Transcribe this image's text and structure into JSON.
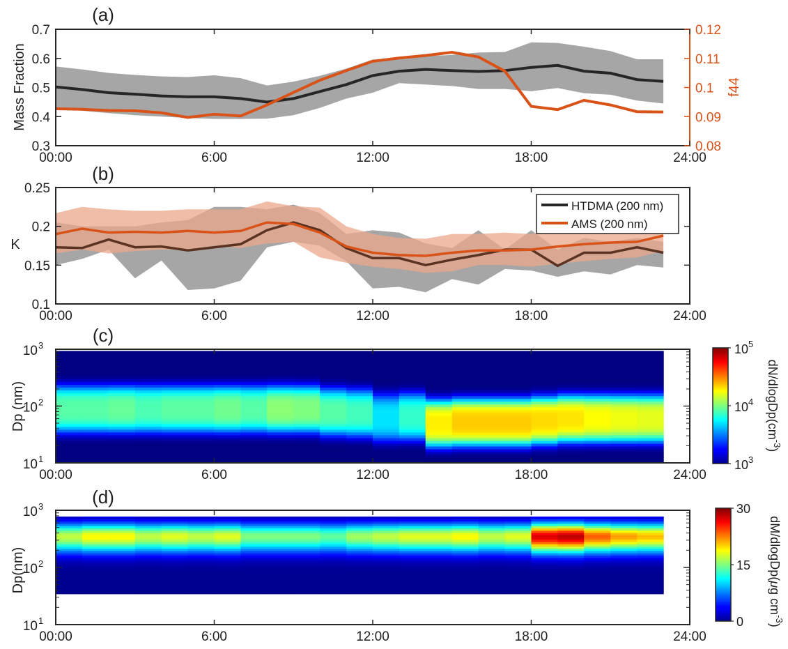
{
  "xticks": [
    "00:00",
    "6:00",
    "12:00",
    "18:00",
    "24:00"
  ],
  "colors": {
    "black_line": "#262626",
    "orange_line": "#d95319",
    "grey_band": "#a6a6a6",
    "orange_band": "#e9a78b",
    "axis_right_orange": "#d95319"
  },
  "chart_data": [
    {
      "type": "line",
      "panel_label": "(a)",
      "ylabel": "Mass Fraction",
      "ylim": [
        0.3,
        0.7
      ],
      "yticks": [
        "0.3",
        "0.4",
        "0.5",
        "0.6",
        "0.7"
      ],
      "y2label": "f44",
      "y2lim": [
        0.08,
        0.12
      ],
      "y2ticks": [
        "0.08",
        "0.09",
        "0.1",
        "0.11",
        "0.12"
      ],
      "x_hours": [
        0,
        1,
        2,
        3,
        4,
        5,
        6,
        7,
        8,
        9,
        10,
        11,
        12,
        13,
        14,
        15,
        16,
        17,
        18,
        19,
        20,
        21,
        22,
        23
      ],
      "series": [
        {
          "axis": "left",
          "values": [
            0.502,
            0.493,
            0.482,
            0.477,
            0.471,
            0.468,
            0.468,
            0.462,
            0.45,
            0.462,
            0.486,
            0.51,
            0.541,
            0.556,
            0.562,
            0.558,
            0.555,
            0.558,
            0.569,
            0.576,
            0.556,
            0.549,
            0.527,
            0.521
          ],
          "lower": [
            0.43,
            0.42,
            0.412,
            0.405,
            0.4,
            0.395,
            0.392,
            0.392,
            0.393,
            0.405,
            0.43,
            0.462,
            0.482,
            0.515,
            0.51,
            0.505,
            0.495,
            0.495,
            0.487,
            0.498,
            0.48,
            0.475,
            0.455,
            0.445
          ],
          "upper": [
            0.572,
            0.562,
            0.55,
            0.543,
            0.538,
            0.536,
            0.542,
            0.532,
            0.507,
            0.52,
            0.54,
            0.565,
            0.596,
            0.6,
            0.607,
            0.612,
            0.62,
            0.622,
            0.655,
            0.653,
            0.64,
            0.625,
            0.597,
            0.597
          ]
        },
        {
          "axis": "right",
          "values": [
            0.0927,
            0.0925,
            0.0921,
            0.092,
            0.0913,
            0.0897,
            0.0908,
            0.0902,
            0.094,
            0.0983,
            0.1025,
            0.1058,
            0.109,
            0.1101,
            0.111,
            0.1121,
            0.1105,
            0.1056,
            0.0935,
            0.0924,
            0.0956,
            0.094,
            0.0917,
            0.0916
          ]
        }
      ]
    },
    {
      "type": "line",
      "panel_label": "(b)",
      "ylabel": "K",
      "ylim": [
        0.1,
        0.25
      ],
      "yticks": [
        "0.1",
        "0.15",
        "0.2",
        "0.25"
      ],
      "x_hours": [
        0,
        1,
        2,
        3,
        4,
        5,
        6,
        7,
        8,
        9,
        10,
        11,
        12,
        13,
        14,
        15,
        16,
        17,
        18,
        19,
        20,
        21,
        22,
        23
      ],
      "legend": {
        "position": "top-right",
        "entries": [
          "HTDMA (200 nm)",
          "AMS (200 nm)"
        ]
      },
      "series": [
        {
          "name": "HTDMA (200 nm)",
          "values": [
            0.173,
            0.172,
            0.183,
            0.173,
            0.174,
            0.169,
            0.173,
            0.177,
            0.195,
            0.205,
            0.195,
            0.172,
            0.159,
            0.159,
            0.15,
            0.157,
            0.163,
            0.17,
            0.17,
            0.149,
            0.166,
            0.166,
            0.173,
            0.166
          ],
          "lower": [
            0.15,
            0.158,
            0.17,
            0.133,
            0.156,
            0.118,
            0.12,
            0.13,
            0.173,
            0.18,
            0.175,
            0.155,
            0.12,
            0.122,
            0.115,
            0.132,
            0.125,
            0.145,
            0.143,
            0.135,
            0.142,
            0.138,
            0.15,
            0.147
          ],
          "upper": [
            0.205,
            0.2,
            0.2,
            0.2,
            0.205,
            0.208,
            0.225,
            0.225,
            0.222,
            0.228,
            0.217,
            0.19,
            0.195,
            0.192,
            0.178,
            0.172,
            0.195,
            0.17,
            0.195,
            0.17,
            0.185,
            0.18,
            0.185,
            0.18
          ]
        },
        {
          "name": "AMS (200 nm)",
          "values": [
            0.19,
            0.197,
            0.192,
            0.193,
            0.192,
            0.194,
            0.192,
            0.194,
            0.205,
            0.203,
            0.192,
            0.174,
            0.166,
            0.163,
            0.162,
            0.166,
            0.169,
            0.169,
            0.17,
            0.174,
            0.177,
            0.179,
            0.18,
            0.188
          ],
          "lower": [
            0.165,
            0.17,
            0.165,
            0.168,
            0.17,
            0.17,
            0.175,
            0.172,
            0.178,
            0.18,
            0.16,
            0.153,
            0.148,
            0.145,
            0.14,
            0.142,
            0.15,
            0.15,
            0.148,
            0.152,
            0.155,
            0.158,
            0.16,
            0.168
          ],
          "upper": [
            0.217,
            0.225,
            0.222,
            0.22,
            0.22,
            0.222,
            0.222,
            0.222,
            0.232,
            0.226,
            0.224,
            0.2,
            0.19,
            0.185,
            0.184,
            0.19,
            0.19,
            0.192,
            0.19,
            0.196,
            0.2,
            0.203,
            0.203,
            0.21
          ]
        }
      ]
    },
    {
      "type": "heatmap",
      "panel_label": "(c)",
      "ylabel": "Dp (nm)",
      "yscale": "log",
      "ylim": [
        10,
        1000
      ],
      "yticks": [
        {
          "base": "10",
          "exp": "1"
        },
        {
          "base": "10",
          "exp": "2"
        },
        {
          "base": "10",
          "exp": "3"
        }
      ],
      "colorbar": {
        "label_main": "dN/dlogDp(cm",
        "label_exp": "-3",
        "label_end": ")",
        "scale": "log",
        "range": [
          1000,
          100000
        ],
        "ticks": [
          {
            "base": "10",
            "exp": "3"
          },
          {
            "base": "10",
            "exp": "4"
          },
          {
            "base": "10",
            "exp": "5"
          }
        ]
      },
      "x_hours": [
        0,
        23
      ],
      "profile_peak_log10": [
        3.92,
        3.92,
        3.95,
        3.9,
        3.93,
        3.93,
        3.97,
        3.92,
        4.02,
        4.0,
        3.92,
        3.88,
        3.7,
        3.85,
        4.28,
        4.35,
        4.35,
        4.35,
        4.32,
        4.3,
        4.25,
        4.22,
        4.2,
        4.18
      ],
      "profile_center_log_dp": [
        1.95,
        1.95,
        1.95,
        1.95,
        1.95,
        1.95,
        1.95,
        1.95,
        1.95,
        1.95,
        1.9,
        1.88,
        1.8,
        1.82,
        1.7,
        1.72,
        1.72,
        1.72,
        1.75,
        1.78,
        1.78,
        1.78,
        1.78,
        1.78
      ]
    },
    {
      "type": "heatmap",
      "panel_label": "(d)",
      "ylabel": "Dp(nm)",
      "yscale": "log",
      "ylim": [
        10,
        1000
      ],
      "yticks": [
        {
          "base": "10",
          "exp": "1"
        },
        {
          "base": "10",
          "exp": "2"
        },
        {
          "base": "10",
          "exp": "3"
        }
      ],
      "colorbar": {
        "label_main": "dM/dlogDp(",
        "label_mu": "μ",
        "label_rest": "g cm",
        "label_exp": "-3",
        "label_end": ")",
        "scale": "linear",
        "range": [
          0,
          30
        ],
        "ticks": [
          "0",
          "15",
          "30"
        ]
      },
      "x_hours": [
        0,
        23
      ],
      "profile_peak": [
        18,
        20,
        20,
        18,
        19,
        18,
        19,
        16,
        16,
        16,
        15,
        17,
        18,
        19,
        19,
        20,
        18,
        19,
        29,
        30,
        25,
        23,
        22,
        21
      ]
    }
  ]
}
